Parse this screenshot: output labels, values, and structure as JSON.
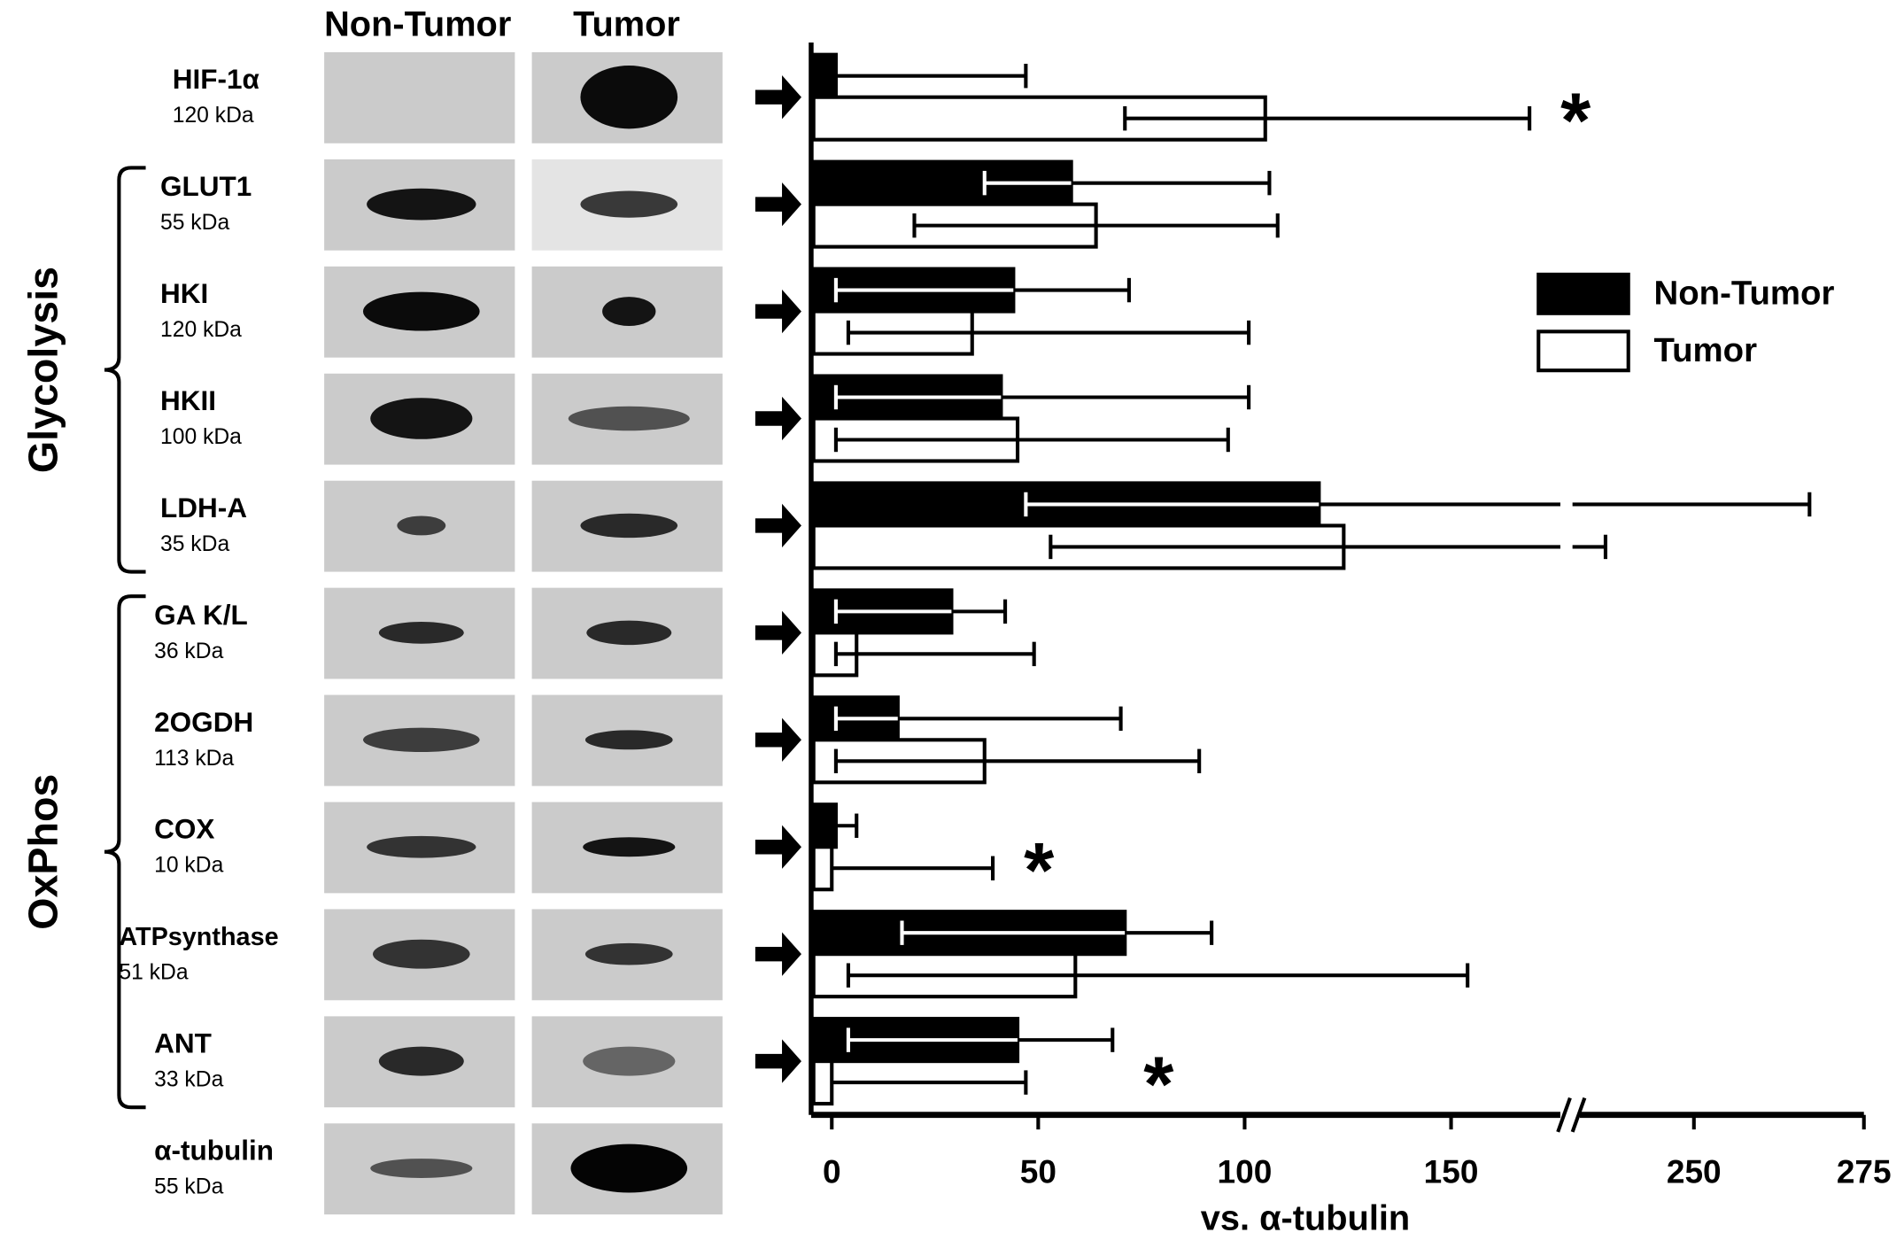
{
  "chart_data": {
    "type": "bar",
    "orientation": "horizontal",
    "categories": [
      "HIF-1α",
      "GLUT1",
      "HKI",
      "HKII",
      "LDH-A",
      "GA K/L",
      "2OGDH",
      "COX",
      "ATPsynthase",
      "ANT"
    ],
    "category_sublabels": [
      "120 kDa",
      "55 kDa",
      "120 kDa",
      "100 kDa",
      "35 kDa",
      "36 kDa",
      "113 kDa",
      "10 kDa",
      "51 kDa",
      "33 kDa"
    ],
    "loading_control": {
      "label": "α-tubulin",
      "sublabel": "55 kDa"
    },
    "groups": [
      {
        "label": "Glycolysis",
        "first": 1,
        "last": 4
      },
      {
        "label": "OxPhos",
        "first": 5,
        "last": 9
      }
    ],
    "series": [
      {
        "name": "Non-Tumor",
        "color": "#000000",
        "values": [
          1,
          58,
          44,
          41,
          118,
          29,
          16,
          1,
          71,
          45
        ],
        "whisker_low": [
          null,
          37,
          1,
          1,
          47,
          1,
          1,
          null,
          17,
          4
        ],
        "whisker_high": [
          47,
          106,
          72,
          101,
          267,
          42,
          70,
          6,
          92,
          68
        ]
      },
      {
        "name": "Tumor",
        "color": "#ffffff",
        "values": [
          105,
          64,
          34,
          45,
          124,
          6,
          37,
          0,
          59,
          0
        ],
        "whisker_low": [
          71,
          20,
          4,
          1,
          53,
          1,
          1,
          null,
          4,
          null
        ],
        "whisker_high": [
          169,
          108,
          101,
          96,
          237,
          49,
          89,
          39,
          154,
          47
        ]
      }
    ],
    "xlabel": "vs. α-tubulin",
    "xlim": [
      -5,
      275
    ],
    "x_break": [
      180,
      232.5
    ],
    "xticks": [
      0,
      50,
      100,
      150,
      250,
      275
    ],
    "annotations": [
      {
        "text": "*",
        "category": 0
      },
      {
        "text": "*",
        "category": 7
      },
      {
        "text": "*",
        "category": 9
      }
    ],
    "legend": "upper right"
  }
}
